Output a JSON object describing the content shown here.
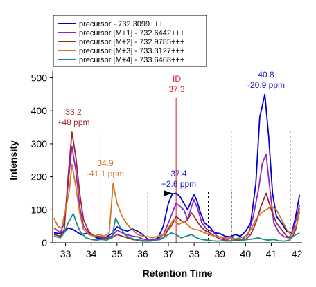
{
  "chart_data": {
    "type": "line",
    "xlabel": "Retention Time",
    "ylabel": "Intensity",
    "xlim": [
      32.5,
      42.2
    ],
    "ylim": [
      0,
      520
    ],
    "xticks": [
      33,
      34,
      35,
      36,
      37,
      38,
      39,
      40,
      41,
      42
    ],
    "yticks": [
      0,
      100,
      200,
      300,
      400,
      500
    ],
    "legend_position": "top-left",
    "series": [
      {
        "name": "precursor - 732.3099+++",
        "color": "#0000cc",
        "points": [
          [
            32.55,
            30
          ],
          [
            32.75,
            28
          ],
          [
            32.95,
            32
          ],
          [
            33.1,
            45
          ],
          [
            33.3,
            40
          ],
          [
            33.45,
            32
          ],
          [
            33.6,
            25
          ],
          [
            33.8,
            28
          ],
          [
            34.0,
            25
          ],
          [
            34.2,
            15
          ],
          [
            34.4,
            12
          ],
          [
            34.6,
            18
          ],
          [
            34.8,
            28
          ],
          [
            35.0,
            48
          ],
          [
            35.2,
            40
          ],
          [
            35.4,
            35
          ],
          [
            35.6,
            42
          ],
          [
            35.8,
            35
          ],
          [
            36.0,
            25
          ],
          [
            36.2,
            10
          ],
          [
            36.4,
            8
          ],
          [
            36.6,
            15
          ],
          [
            36.8,
            50
          ],
          [
            37.0,
            120
          ],
          [
            37.15,
            148
          ],
          [
            37.3,
            150
          ],
          [
            37.45,
            140
          ],
          [
            37.6,
            120
          ],
          [
            37.75,
            100
          ],
          [
            37.9,
            130
          ],
          [
            38.0,
            145
          ],
          [
            38.1,
            130
          ],
          [
            38.25,
            90
          ],
          [
            38.4,
            60
          ],
          [
            38.6,
            48
          ],
          [
            38.8,
            30
          ],
          [
            39.0,
            28
          ],
          [
            39.2,
            20
          ],
          [
            39.4,
            18
          ],
          [
            39.6,
            25
          ],
          [
            39.8,
            20
          ],
          [
            40.0,
            35
          ],
          [
            40.2,
            60
          ],
          [
            40.4,
            180
          ],
          [
            40.55,
            380
          ],
          [
            40.75,
            450
          ],
          [
            40.9,
            320
          ],
          [
            41.05,
            150
          ],
          [
            41.2,
            80
          ],
          [
            41.4,
            60
          ],
          [
            41.6,
            35
          ],
          [
            41.8,
            30
          ],
          [
            41.95,
            80
          ],
          [
            42.1,
            145
          ]
        ]
      },
      {
        "name": "precursor [M+1] - 732.6442+++",
        "color": "#8c26c8",
        "points": [
          [
            32.55,
            45
          ],
          [
            32.8,
            30
          ],
          [
            32.95,
            60
          ],
          [
            33.1,
            180
          ],
          [
            33.25,
            292
          ],
          [
            33.4,
            220
          ],
          [
            33.55,
            110
          ],
          [
            33.7,
            50
          ],
          [
            33.9,
            30
          ],
          [
            34.1,
            22
          ],
          [
            34.4,
            18
          ],
          [
            34.6,
            15
          ],
          [
            34.8,
            20
          ],
          [
            35.0,
            38
          ],
          [
            35.2,
            30
          ],
          [
            35.4,
            25
          ],
          [
            35.6,
            20
          ],
          [
            35.8,
            18
          ],
          [
            36.0,
            12
          ],
          [
            36.2,
            8
          ],
          [
            36.4,
            10
          ],
          [
            36.6,
            12
          ],
          [
            36.8,
            25
          ],
          [
            37.0,
            60
          ],
          [
            37.15,
            90
          ],
          [
            37.3,
            120
          ],
          [
            37.45,
            110
          ],
          [
            37.6,
            100
          ],
          [
            37.75,
            70
          ],
          [
            37.9,
            110
          ],
          [
            38.0,
            130
          ],
          [
            38.15,
            100
          ],
          [
            38.3,
            60
          ],
          [
            38.5,
            40
          ],
          [
            38.7,
            35
          ],
          [
            38.9,
            20
          ],
          [
            39.1,
            15
          ],
          [
            39.3,
            10
          ],
          [
            39.5,
            15
          ],
          [
            39.7,
            8
          ],
          [
            39.9,
            12
          ],
          [
            40.1,
            25
          ],
          [
            40.3,
            80
          ],
          [
            40.5,
            160
          ],
          [
            40.65,
            240
          ],
          [
            40.8,
            268
          ],
          [
            40.95,
            160
          ],
          [
            41.1,
            60
          ],
          [
            41.3,
            30
          ],
          [
            41.5,
            18
          ],
          [
            41.7,
            15
          ],
          [
            41.85,
            40
          ],
          [
            42.0,
            80
          ],
          [
            42.1,
            115
          ]
        ]
      },
      {
        "name": "precursor [M+2] - 732.9785+++",
        "color": "#a0282d",
        "points": [
          [
            32.55,
            25
          ],
          [
            32.8,
            20
          ],
          [
            32.95,
            40
          ],
          [
            33.1,
            200
          ],
          [
            33.25,
            335
          ],
          [
            33.4,
            260
          ],
          [
            33.55,
            150
          ],
          [
            33.7,
            70
          ],
          [
            33.9,
            35
          ],
          [
            34.1,
            20
          ],
          [
            34.4,
            15
          ],
          [
            34.6,
            12
          ],
          [
            34.8,
            15
          ],
          [
            35.0,
            25
          ],
          [
            35.2,
            20
          ],
          [
            35.4,
            15
          ],
          [
            35.6,
            10
          ],
          [
            35.8,
            8
          ],
          [
            36.0,
            5
          ],
          [
            36.2,
            5
          ],
          [
            36.4,
            6
          ],
          [
            36.6,
            10
          ],
          [
            36.8,
            15
          ],
          [
            37.0,
            40
          ],
          [
            37.15,
            55
          ],
          [
            37.3,
            80
          ],
          [
            37.45,
            70
          ],
          [
            37.6,
            60
          ],
          [
            37.75,
            70
          ],
          [
            37.9,
            90
          ],
          [
            38.0,
            80
          ],
          [
            38.2,
            55
          ],
          [
            38.4,
            38
          ],
          [
            38.6,
            30
          ],
          [
            38.8,
            20
          ],
          [
            39.0,
            12
          ],
          [
            39.2,
            8
          ],
          [
            39.4,
            5
          ],
          [
            39.6,
            8
          ],
          [
            39.8,
            6
          ],
          [
            40.0,
            10
          ],
          [
            40.2,
            25
          ],
          [
            40.4,
            60
          ],
          [
            40.6,
            110
          ],
          [
            40.8,
            150
          ],
          [
            41.0,
            100
          ],
          [
            41.2,
            60
          ],
          [
            41.4,
            40
          ],
          [
            41.6,
            20
          ],
          [
            41.8,
            15
          ],
          [
            41.95,
            40
          ],
          [
            42.1,
            95
          ]
        ]
      },
      {
        "name": "precursor [M+3] - 733.3127+++",
        "color": "#d27828",
        "points": [
          [
            32.55,
            75
          ],
          [
            32.7,
            50
          ],
          [
            32.85,
            45
          ],
          [
            33.0,
            100
          ],
          [
            33.15,
            160
          ],
          [
            33.25,
            238
          ],
          [
            33.4,
            170
          ],
          [
            33.55,
            90
          ],
          [
            33.7,
            40
          ],
          [
            33.9,
            25
          ],
          [
            34.1,
            20
          ],
          [
            34.3,
            25
          ],
          [
            34.5,
            20
          ],
          [
            34.7,
            30
          ],
          [
            34.85,
            180
          ],
          [
            35.0,
            120
          ],
          [
            35.2,
            80
          ],
          [
            35.4,
            55
          ],
          [
            35.6,
            40
          ],
          [
            35.8,
            25
          ],
          [
            36.0,
            20
          ],
          [
            36.2,
            18
          ],
          [
            36.4,
            15
          ],
          [
            36.6,
            20
          ],
          [
            36.8,
            25
          ],
          [
            37.0,
            45
          ],
          [
            37.2,
            70
          ],
          [
            37.4,
            55
          ],
          [
            37.6,
            65
          ],
          [
            37.8,
            50
          ],
          [
            38.0,
            40
          ],
          [
            38.2,
            38
          ],
          [
            38.4,
            30
          ],
          [
            38.6,
            25
          ],
          [
            38.8,
            20
          ],
          [
            39.0,
            18
          ],
          [
            39.2,
            15
          ],
          [
            39.4,
            15
          ],
          [
            39.6,
            12
          ],
          [
            39.8,
            15
          ],
          [
            40.0,
            20
          ],
          [
            40.2,
            40
          ],
          [
            40.4,
            70
          ],
          [
            40.6,
            90
          ],
          [
            40.8,
            100
          ],
          [
            41.0,
            110
          ],
          [
            41.2,
            100
          ],
          [
            41.4,
            70
          ],
          [
            41.6,
            40
          ],
          [
            41.8,
            20
          ],
          [
            42.0,
            60
          ],
          [
            42.1,
            105
          ]
        ]
      },
      {
        "name": "precursor [M+4] - 733.6468+++",
        "color": "#1a8c82",
        "points": [
          [
            32.55,
            20
          ],
          [
            32.8,
            15
          ],
          [
            32.95,
            30
          ],
          [
            33.1,
            60
          ],
          [
            33.3,
            88
          ],
          [
            33.45,
            55
          ],
          [
            33.6,
            30
          ],
          [
            33.8,
            15
          ],
          [
            34.0,
            10
          ],
          [
            34.2,
            8
          ],
          [
            34.4,
            10
          ],
          [
            34.6,
            8
          ],
          [
            34.8,
            15
          ],
          [
            34.95,
            75
          ],
          [
            35.1,
            50
          ],
          [
            35.3,
            25
          ],
          [
            35.5,
            15
          ],
          [
            35.7,
            10
          ],
          [
            35.9,
            8
          ],
          [
            36.1,
            6
          ],
          [
            36.3,
            5
          ],
          [
            36.5,
            8
          ],
          [
            36.7,
            10
          ],
          [
            36.9,
            20
          ],
          [
            37.1,
            30
          ],
          [
            37.3,
            25
          ],
          [
            37.5,
            15
          ],
          [
            37.7,
            20
          ],
          [
            37.9,
            25
          ],
          [
            38.1,
            15
          ],
          [
            38.3,
            10
          ],
          [
            38.5,
            8
          ],
          [
            38.7,
            6
          ],
          [
            38.9,
            5
          ],
          [
            39.1,
            6
          ],
          [
            39.3,
            5
          ],
          [
            39.5,
            8
          ],
          [
            39.7,
            10
          ],
          [
            39.9,
            8
          ],
          [
            40.1,
            10
          ],
          [
            40.3,
            12
          ],
          [
            40.5,
            15
          ],
          [
            40.7,
            10
          ],
          [
            40.9,
            8
          ],
          [
            41.1,
            10
          ],
          [
            41.3,
            6
          ],
          [
            41.5,
            5
          ],
          [
            41.7,
            8
          ],
          [
            41.85,
            20
          ],
          [
            42.1,
            30
          ]
        ]
      }
    ],
    "annotations": [
      {
        "lines": [
          "33.2",
          "+48 ppm"
        ],
        "x": 33.2,
        "color": "#a0282d"
      },
      {
        "lines": [
          "34.9",
          "-41.1 ppm"
        ],
        "x": 34.9,
        "color": "#d27828"
      },
      {
        "lines": [
          "ID",
          "37.3"
        ],
        "x": 37.3,
        "color": "#d0202a"
      },
      {
        "lines": [
          "37.4",
          "+2.6 ppm"
        ],
        "x": 37.4,
        "color": "#1a1acc"
      },
      {
        "lines": [
          "40.8",
          "-20.9 ppm"
        ],
        "x": 40.8,
        "color": "#1a1acc"
      }
    ],
    "id_line": {
      "x": 37.3,
      "ymax": 440,
      "color": "#d0202a"
    },
    "dashed_lines": {
      "gray": [
        33.3,
        34.35,
        39.45,
        41.75
      ],
      "black": [
        36.2,
        38.55,
        39.45
      ]
    },
    "arrow_marker": {
      "x": 37.0,
      "y": 150
    }
  }
}
